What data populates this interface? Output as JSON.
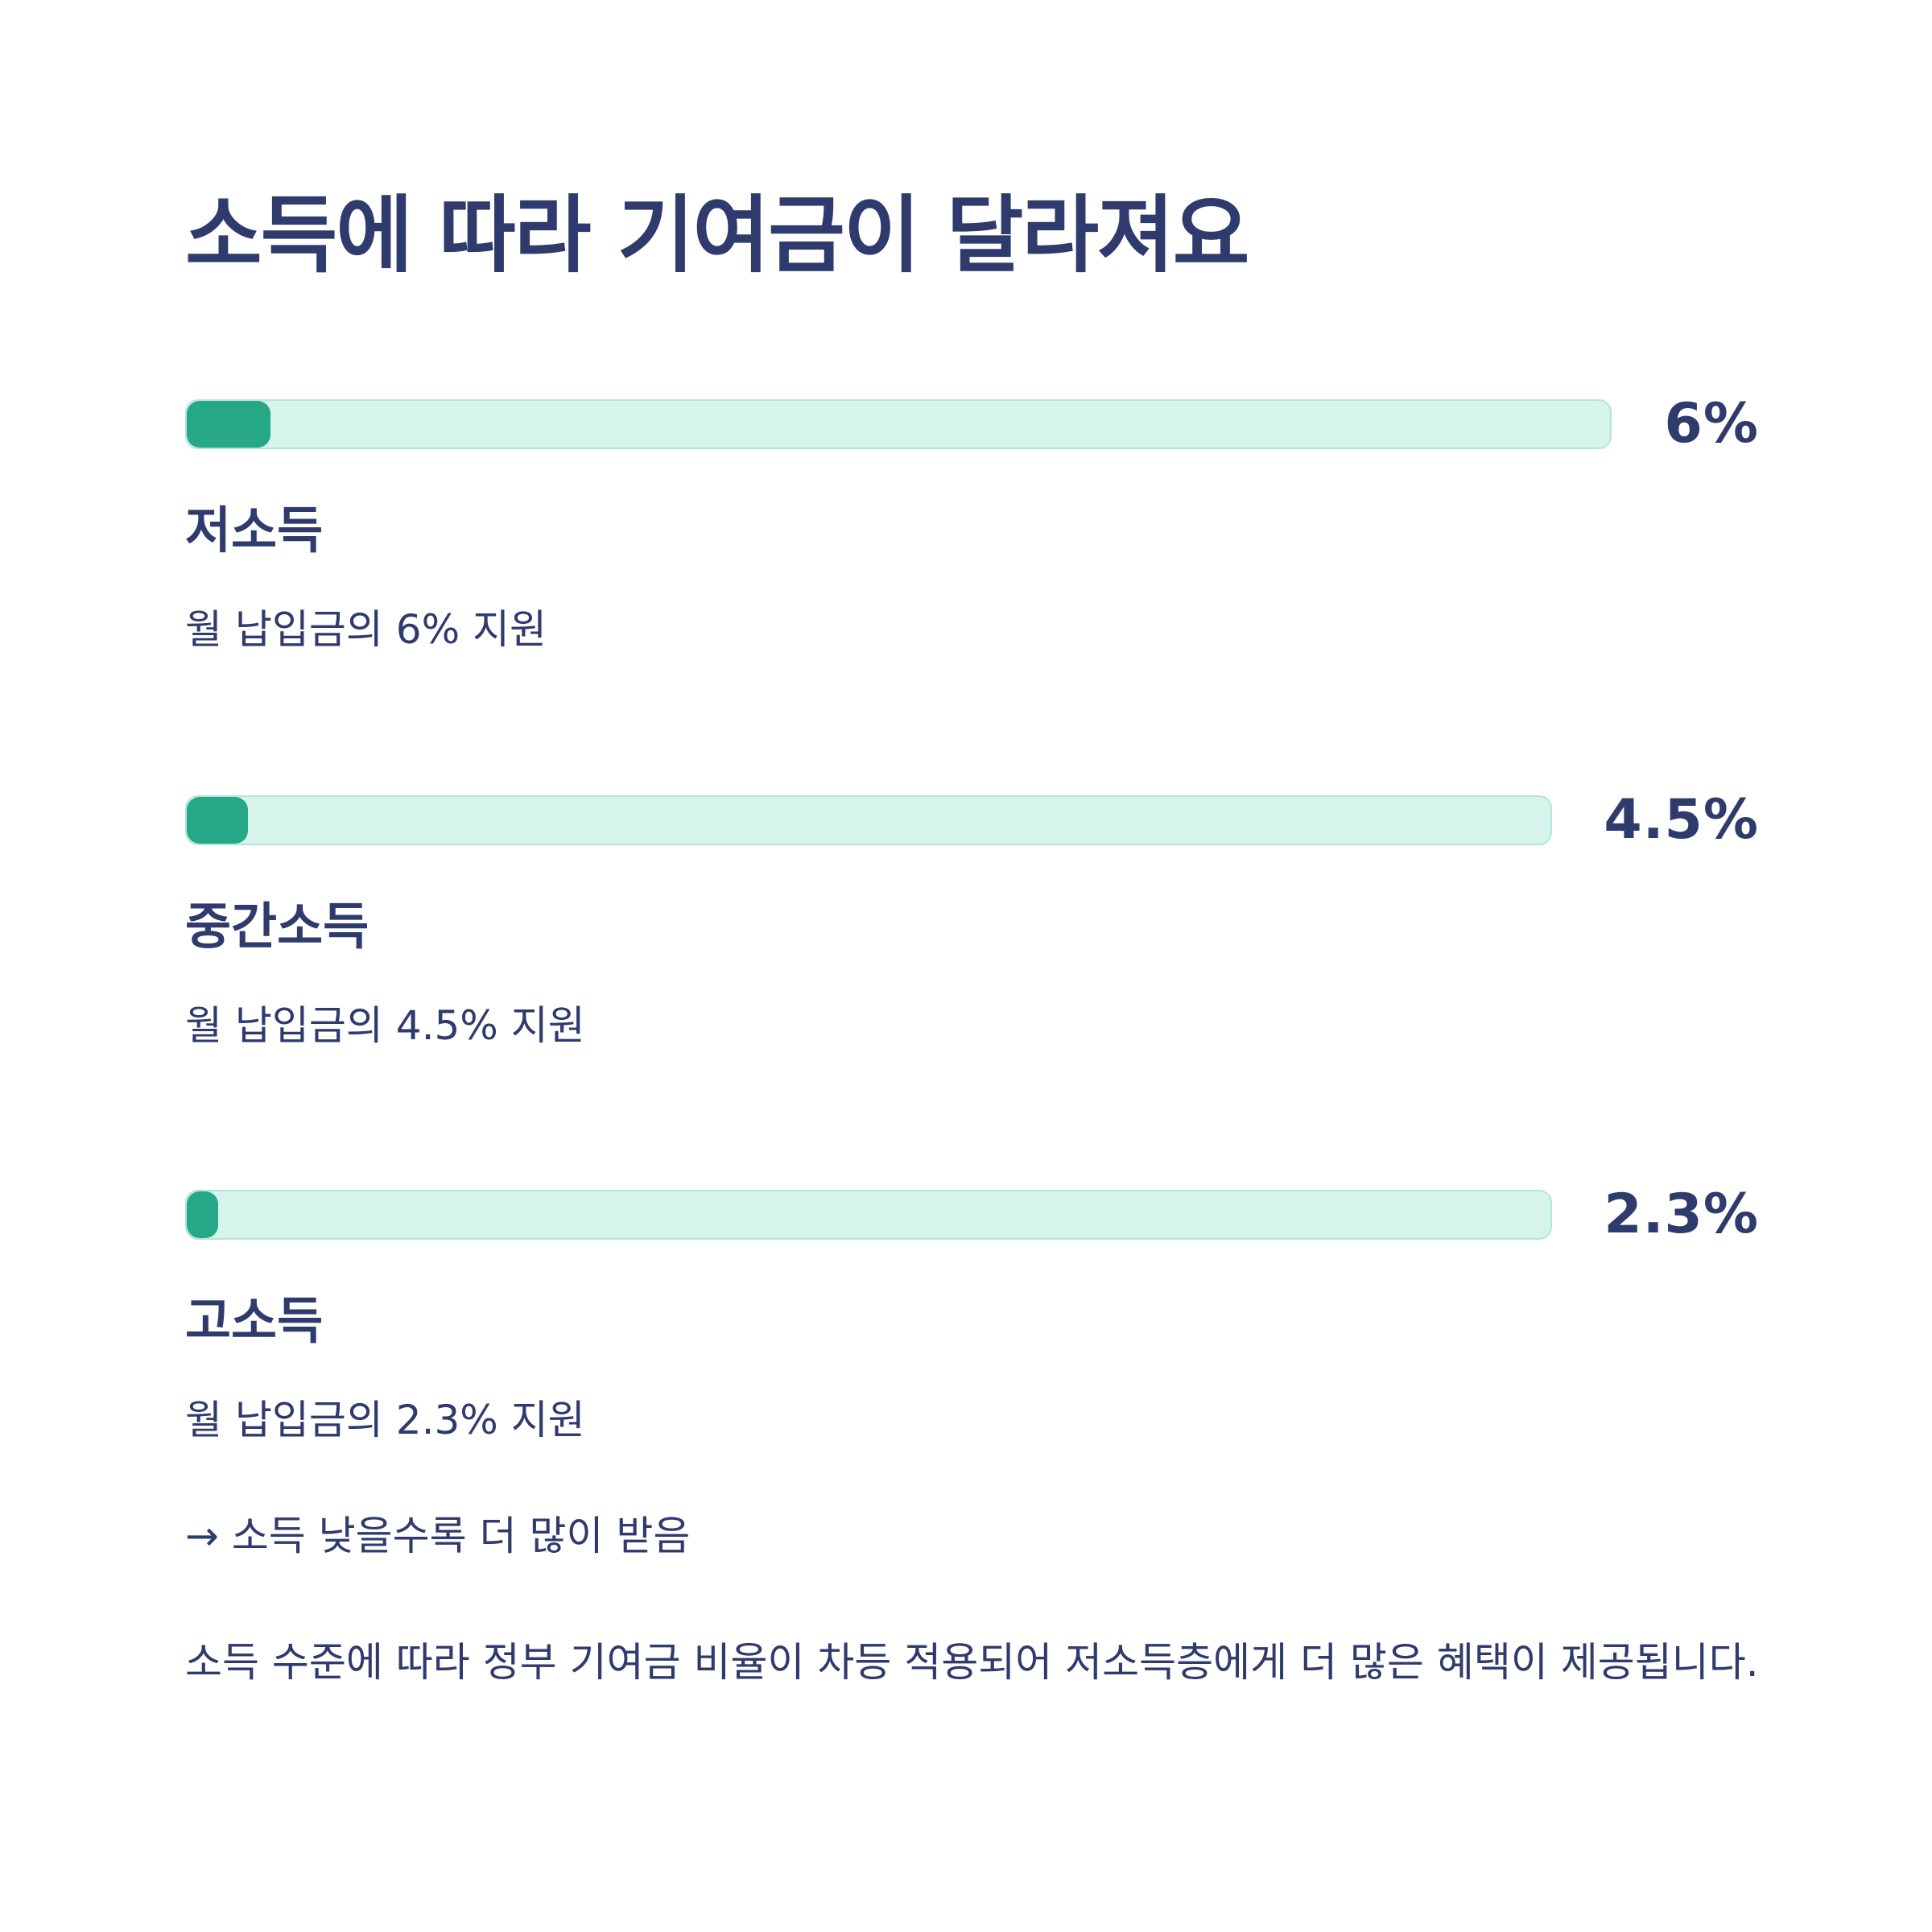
{
  "title": "소득에 따라 기여금이 달라져요",
  "tiers": [
    {
      "value_label": "6%",
      "value": 6,
      "fill_fraction": 0.059,
      "name": "저소득",
      "description": "월 납입금의 6% 지원"
    },
    {
      "value_label": "4.5%",
      "value": 4.5,
      "fill_fraction": 0.045,
      "name": "중간소득",
      "description": "월 납입금의 4.5% 지원"
    },
    {
      "value_label": "2.3%",
      "value": 2.3,
      "fill_fraction": 0.023,
      "name": "고소득",
      "description": "월 납입금의 2.3% 지원"
    }
  ],
  "note": "→ 소득 낮을수록 더 많이 받음",
  "summary": "소득 수준에 따라 정부 기여금 비율이 차등 적용되어 저소득층에게 더 많은 혜택이 제공됩니다.",
  "colors": {
    "text": "#2f3a6d",
    "bar_track": "#d6f4ec",
    "bar_track_border": "#b3e6d8",
    "bar_fill": "#26a886",
    "background": "#ffffff"
  }
}
